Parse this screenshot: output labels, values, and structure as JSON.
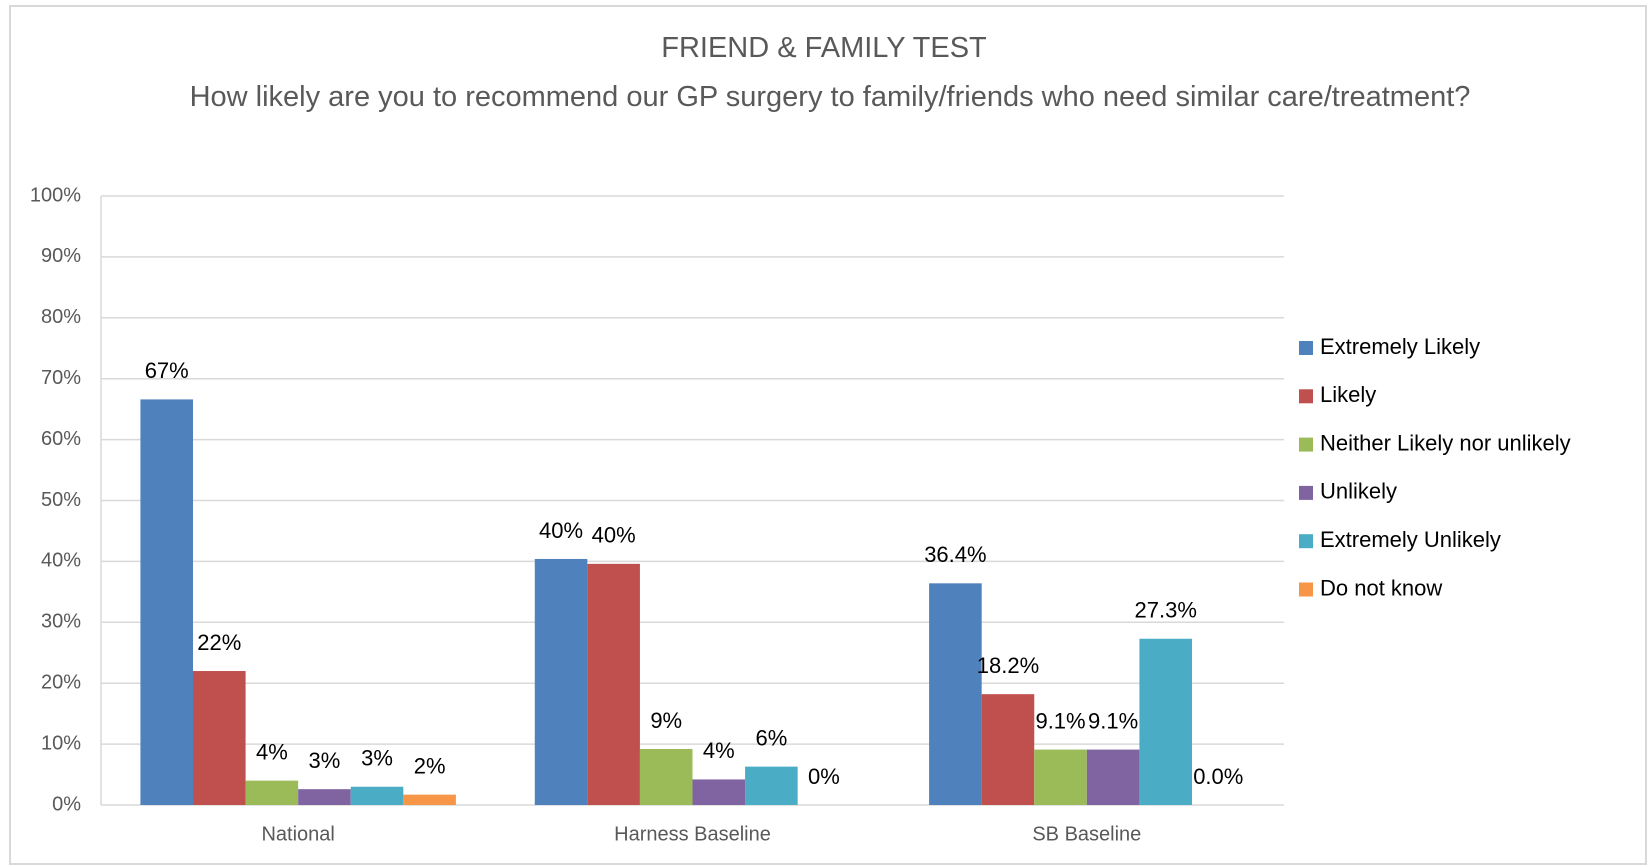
{
  "chart_data": {
    "type": "bar",
    "title": "FRIEND & FAMILY TEST",
    "subtitle": "How likely are you to recommend our GP surgery to family/friends who need similar care/treatment?",
    "categories": [
      "National",
      "Harness Baseline",
      "SB Baseline"
    ],
    "series": [
      {
        "name": "Extremely Likely",
        "color": "#4f81bd",
        "values": [
          66.6,
          40.4,
          36.4
        ],
        "value_labels": [
          "67%",
          "40%",
          "36.4%"
        ]
      },
      {
        "name": "Likely",
        "color": "#c0504d",
        "values": [
          22,
          39.6,
          18.2
        ],
        "value_labels": [
          "22%",
          "40%",
          "18.2%"
        ]
      },
      {
        "name": "Neither Likely nor unlikely",
        "color": "#9bbb59",
        "values": [
          4,
          9.2,
          9.1
        ],
        "value_labels": [
          "4%",
          "9%",
          "9.1%"
        ]
      },
      {
        "name": "Unlikely",
        "color": "#8064a2",
        "values": [
          2.6,
          4.2,
          9.1
        ],
        "value_labels": [
          "3%",
          "4%",
          "9.1%"
        ]
      },
      {
        "name": "Extremely Unlikely",
        "color": "#4bacc6",
        "values": [
          3,
          6.3,
          27.3
        ],
        "value_labels": [
          "3%",
          "6%",
          "27.3%"
        ]
      },
      {
        "name": "Do not know",
        "color": "#f79646",
        "values": [
          1.7,
          0,
          0
        ],
        "value_labels": [
          "2%",
          "0%",
          "0.0%"
        ]
      }
    ],
    "ylim": [
      0,
      100
    ],
    "yticks": [
      {
        "value": 0,
        "label": "0%"
      },
      {
        "value": 10,
        "label": "10%"
      },
      {
        "value": 20,
        "label": "20%"
      },
      {
        "value": 30,
        "label": "30%"
      },
      {
        "value": 40,
        "label": "40%"
      },
      {
        "value": 50,
        "label": "50%"
      },
      {
        "value": 60,
        "label": "60%"
      },
      {
        "value": 70,
        "label": "70%"
      },
      {
        "value": 80,
        "label": "80%"
      },
      {
        "value": 90,
        "label": "90%"
      },
      {
        "value": 100,
        "label": "100%"
      }
    ],
    "grid": true,
    "legend": "right"
  }
}
